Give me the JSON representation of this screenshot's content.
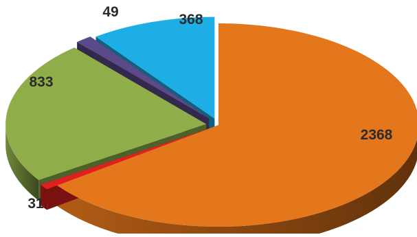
{
  "chart_data": {
    "type": "pie",
    "style": "3d-exploded",
    "legend": "none",
    "slices": [
      {
        "label": "2368",
        "value": 2368,
        "color": "#e4761b"
      },
      {
        "label": "31",
        "value": 31,
        "color": "#e02020"
      },
      {
        "label": "833",
        "value": 833,
        "color": "#8fae4a"
      },
      {
        "label": "49",
        "value": 49,
        "color": "#5b4a8a"
      },
      {
        "label": "368",
        "value": 368,
        "color": "#1eaee6"
      }
    ]
  }
}
